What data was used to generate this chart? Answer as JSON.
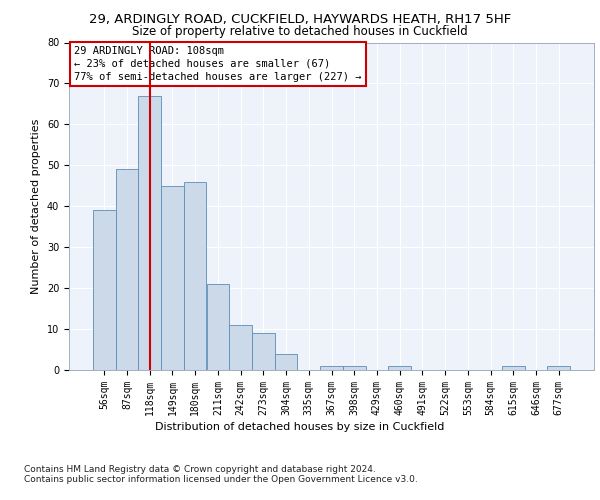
{
  "title1": "29, ARDINGLY ROAD, CUCKFIELD, HAYWARDS HEATH, RH17 5HF",
  "title2": "Size of property relative to detached houses in Cuckfield",
  "xlabel": "Distribution of detached houses by size in Cuckfield",
  "ylabel": "Number of detached properties",
  "footnote": "Contains HM Land Registry data © Crown copyright and database right 2024.\nContains public sector information licensed under the Open Government Licence v3.0.",
  "annotation_line1": "29 ARDINGLY ROAD: 108sqm",
  "annotation_line2": "← 23% of detached houses are smaller (67)",
  "annotation_line3": "77% of semi-detached houses are larger (227) →",
  "bar_categories": [
    "56sqm",
    "87sqm",
    "118sqm",
    "149sqm",
    "180sqm",
    "211sqm",
    "242sqm",
    "273sqm",
    "304sqm",
    "335sqm",
    "367sqm",
    "398sqm",
    "429sqm",
    "460sqm",
    "491sqm",
    "522sqm",
    "553sqm",
    "584sqm",
    "615sqm",
    "646sqm",
    "677sqm"
  ],
  "bar_heights": [
    39,
    49,
    67,
    45,
    46,
    21,
    11,
    9,
    4,
    0,
    1,
    1,
    0,
    1,
    0,
    0,
    0,
    0,
    1,
    0,
    1
  ],
  "bar_color": "#ccd9e8",
  "bar_edge_color": "#5b8db8",
  "subject_bar_index": 2,
  "subject_line_color": "#cc0000",
  "annotation_box_edge_color": "#cc0000",
  "background_color": "#ffffff",
  "plot_bg_color": "#eef2fa",
  "grid_color": "#ffffff",
  "ylim": [
    0,
    80
  ],
  "yticks": [
    0,
    10,
    20,
    30,
    40,
    50,
    60,
    70,
    80
  ],
  "title1_fontsize": 9.5,
  "title2_fontsize": 8.5,
  "xlabel_fontsize": 8,
  "ylabel_fontsize": 8,
  "tick_fontsize": 7,
  "annotation_fontsize": 7.5,
  "footnote_fontsize": 6.5
}
